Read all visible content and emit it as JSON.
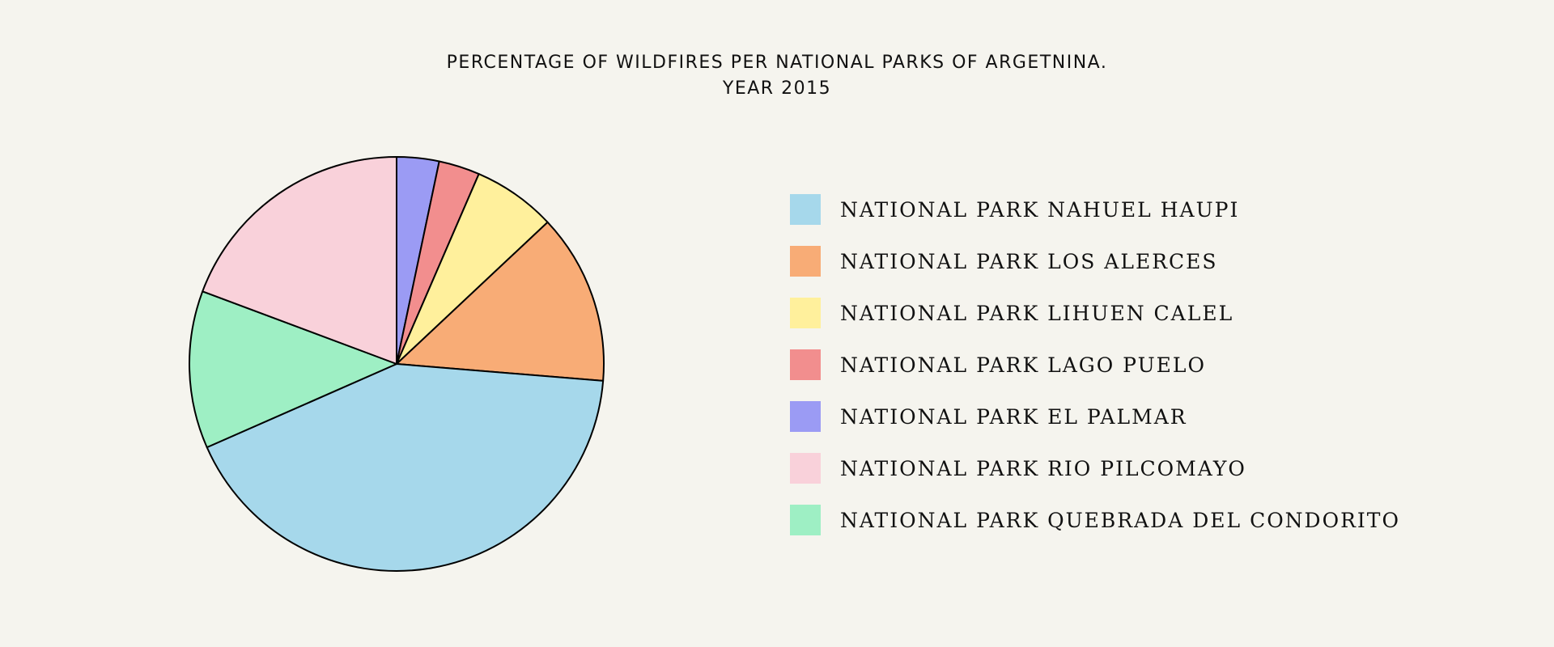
{
  "chart_data": {
    "type": "pie",
    "title": "PERCENTAGE OF WILDFIRES PER NATIONAL PARKS OF ARGETNINA.",
    "subtitle": "YEAR 2015",
    "legend_position": "right",
    "slices": [
      {
        "label": "NATIONAL PARK EL PALMAR",
        "value": 3.3,
        "color": "#9b9bf4"
      },
      {
        "label": "NATIONAL PARK LAGO PUELO",
        "value": 3.2,
        "color": "#f28e8e"
      },
      {
        "label": "NATIONAL PARK LIHUEN CALEL",
        "value": 6.5,
        "color": "#fff09c"
      },
      {
        "label": "NATIONAL PARK LOS ALERCES",
        "value": 13.3,
        "color": "#f8ac76"
      },
      {
        "label": "NATIONAL PARK NAHUEL HAUPI",
        "value": 42.1,
        "color": "#a6d8eb"
      },
      {
        "label": "NATIONAL PARK QUEBRADA DEL CONDORITO",
        "value": 12.3,
        "color": "#9eefc4"
      },
      {
        "label": "NATIONAL PARK RIO PILCOMAYO",
        "value": 19.3,
        "color": "#f9d1da"
      }
    ],
    "legend_order": [
      "NATIONAL PARK NAHUEL HAUPI",
      "NATIONAL PARK LOS ALERCES",
      "NATIONAL PARK LIHUEN CALEL",
      "NATIONAL PARK LAGO PUELO",
      "NATIONAL PARK EL PALMAR",
      "NATIONAL PARK RIO PILCOMAYO",
      "NATIONAL PARK QUEBRADA DEL CONDORITO"
    ]
  }
}
